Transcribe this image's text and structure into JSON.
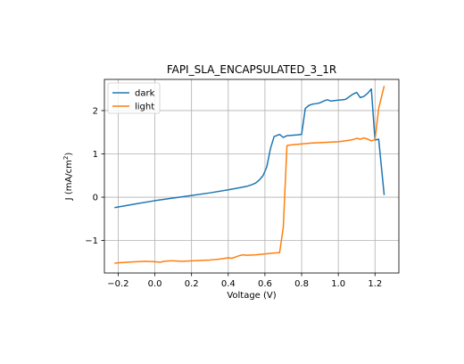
{
  "chart_data": {
    "type": "line",
    "title": "FAPI_SLA_ENCAPSULATED_3_1R",
    "xlabel": "Voltage (V)",
    "ylabel": "J (mA/cm²)",
    "ylabel_main": "J (mA/cm",
    "ylabel_sup": "2",
    "ylabel_tail": ")",
    "xlim": [
      -0.275,
      1.33
    ],
    "ylim": [
      -1.75,
      2.72
    ],
    "xticks": [
      -0.2,
      0.0,
      0.2,
      0.4,
      0.6,
      0.8,
      1.0,
      1.2
    ],
    "xtick_labels": [
      "−0.2",
      "0.0",
      "0.2",
      "0.4",
      "0.6",
      "0.8",
      "1.0",
      "1.2"
    ],
    "yticks": [
      -1,
      0,
      1,
      2
    ],
    "ytick_labels": [
      "−1",
      "0",
      "1",
      "2"
    ],
    "grid": true,
    "legend_position": "top-left",
    "series": [
      {
        "name": "dark",
        "color": "#1f77b4",
        "x": [
          -0.22,
          -0.1,
          0.0,
          0.1,
          0.2,
          0.3,
          0.4,
          0.45,
          0.5,
          0.53,
          0.55,
          0.57,
          0.59,
          0.61,
          0.63,
          0.65,
          0.68,
          0.7,
          0.72,
          0.75,
          0.78,
          0.8,
          0.82,
          0.84,
          0.86,
          0.88,
          0.9,
          0.92,
          0.94,
          0.96,
          0.98,
          1.0,
          1.02,
          1.04,
          1.06,
          1.08,
          1.1,
          1.12,
          1.14,
          1.16,
          1.18,
          1.2,
          1.22,
          1.25
        ],
        "y": [
          -0.24,
          -0.15,
          -0.08,
          -0.02,
          0.04,
          0.1,
          0.17,
          0.21,
          0.25,
          0.29,
          0.33,
          0.4,
          0.5,
          0.7,
          1.12,
          1.4,
          1.45,
          1.38,
          1.42,
          1.43,
          1.44,
          1.45,
          2.05,
          2.12,
          2.15,
          2.16,
          2.18,
          2.22,
          2.25,
          2.22,
          2.23,
          2.24,
          2.25,
          2.26,
          2.32,
          2.38,
          2.42,
          2.3,
          2.33,
          2.4,
          2.5,
          1.32,
          1.34,
          0.05
        ]
      },
      {
        "name": "light",
        "color": "#ff7f0e",
        "x": [
          -0.22,
          -0.15,
          -0.1,
          -0.05,
          0.0,
          0.03,
          0.05,
          0.08,
          0.1,
          0.15,
          0.2,
          0.25,
          0.3,
          0.35,
          0.4,
          0.42,
          0.44,
          0.46,
          0.48,
          0.5,
          0.55,
          0.6,
          0.65,
          0.68,
          0.7,
          0.72,
          0.73,
          0.75,
          0.8,
          0.85,
          0.9,
          0.95,
          1.0,
          1.05,
          1.08,
          1.1,
          1.12,
          1.14,
          1.16,
          1.18,
          1.2,
          1.22,
          1.25
        ],
        "y": [
          -1.52,
          -1.5,
          -1.49,
          -1.48,
          -1.49,
          -1.5,
          -1.48,
          -1.47,
          -1.47,
          -1.48,
          -1.47,
          -1.46,
          -1.45,
          -1.43,
          -1.4,
          -1.41,
          -1.38,
          -1.35,
          -1.33,
          -1.34,
          -1.33,
          -1.31,
          -1.29,
          -1.28,
          -0.7,
          1.19,
          1.2,
          1.21,
          1.23,
          1.25,
          1.26,
          1.27,
          1.28,
          1.31,
          1.33,
          1.36,
          1.34,
          1.37,
          1.34,
          1.3,
          1.33,
          2.05,
          2.57
        ]
      }
    ]
  }
}
